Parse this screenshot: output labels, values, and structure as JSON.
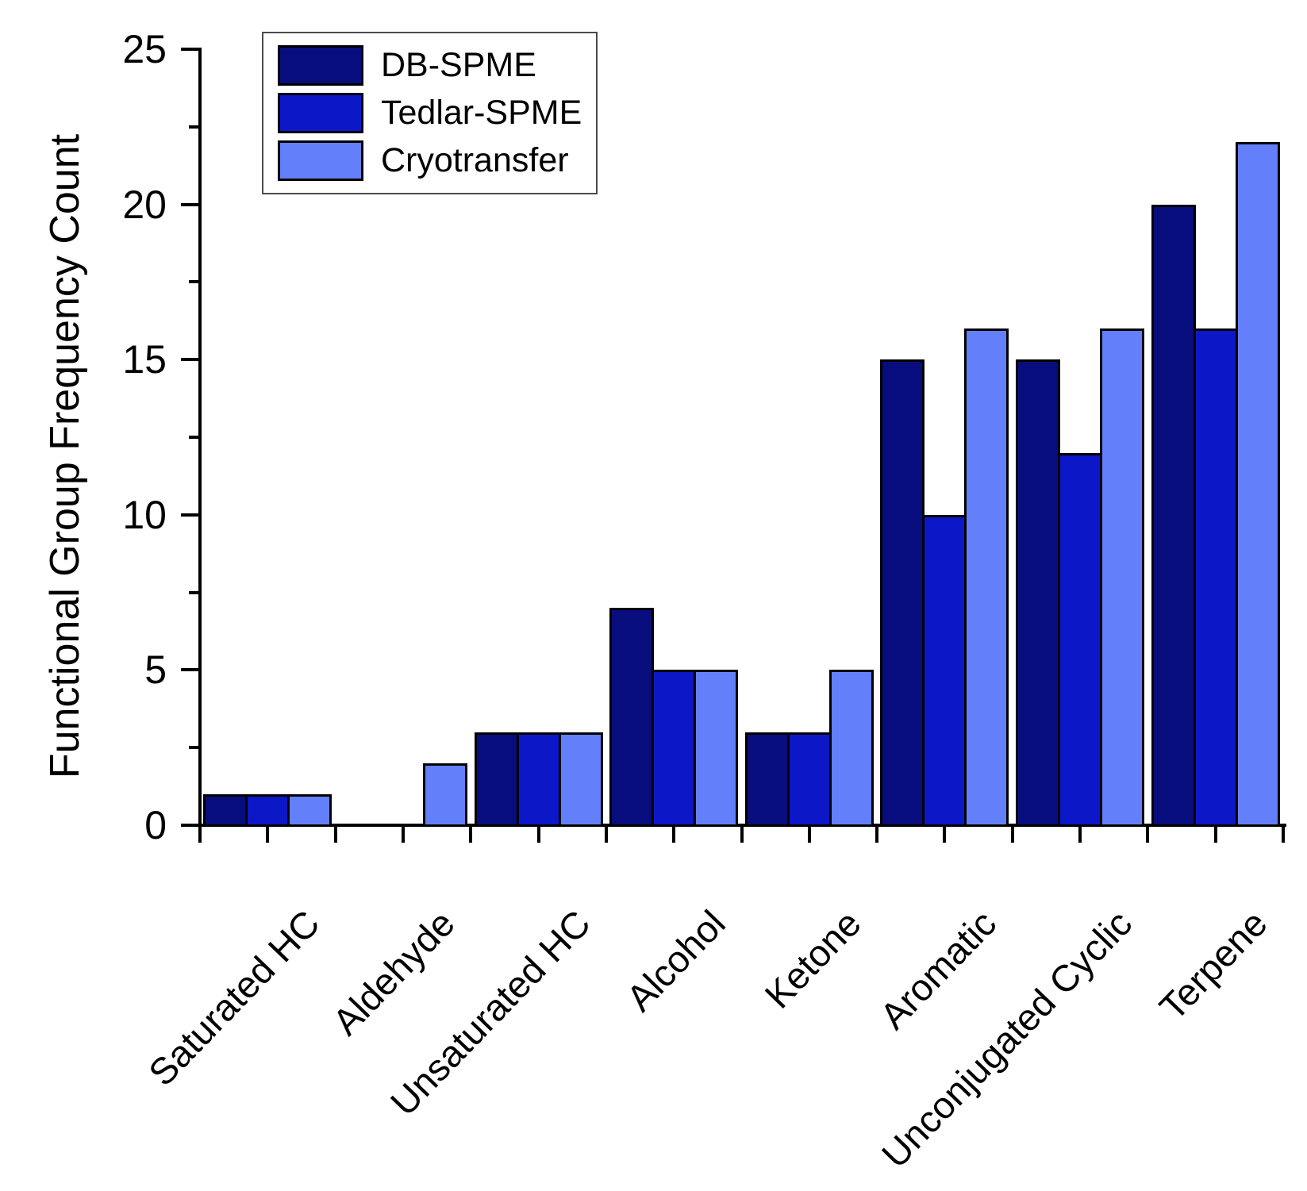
{
  "figure": {
    "background_color": "#ffffff",
    "axis_color": "#000000"
  },
  "chart_data": {
    "type": "bar",
    "title": "",
    "xlabel": "",
    "ylabel": "Functional Group Frequency Count",
    "ylim": [
      0,
      25
    ],
    "y_major_ticks": [
      0,
      5,
      10,
      15,
      20,
      25
    ],
    "y_minor_ticks": [
      2.5,
      7.5,
      12.5,
      17.5,
      22.5
    ],
    "grid": false,
    "legend_position": "top-left-inside",
    "bar_outline_color": "#000000",
    "categories": [
      "Saturated HC",
      "Aldehyde",
      "Unsaturated HC",
      "Alcohol",
      "Ketone",
      "Aromatic",
      "Unconjugated Cyclic",
      "Terpene"
    ],
    "series": [
      {
        "name": "DB-SPME",
        "color": "#080D7D",
        "values": [
          1,
          0,
          3,
          7,
          3,
          15,
          15,
          20
        ]
      },
      {
        "name": "Tedlar-SPME",
        "color": "#0C18C8",
        "values": [
          1,
          0,
          3,
          5,
          3,
          10,
          12,
          16
        ]
      },
      {
        "name": "Cryotransfer",
        "color": "#6380FA",
        "values": [
          1,
          2,
          3,
          5,
          5,
          16,
          16,
          22
        ]
      }
    ]
  }
}
